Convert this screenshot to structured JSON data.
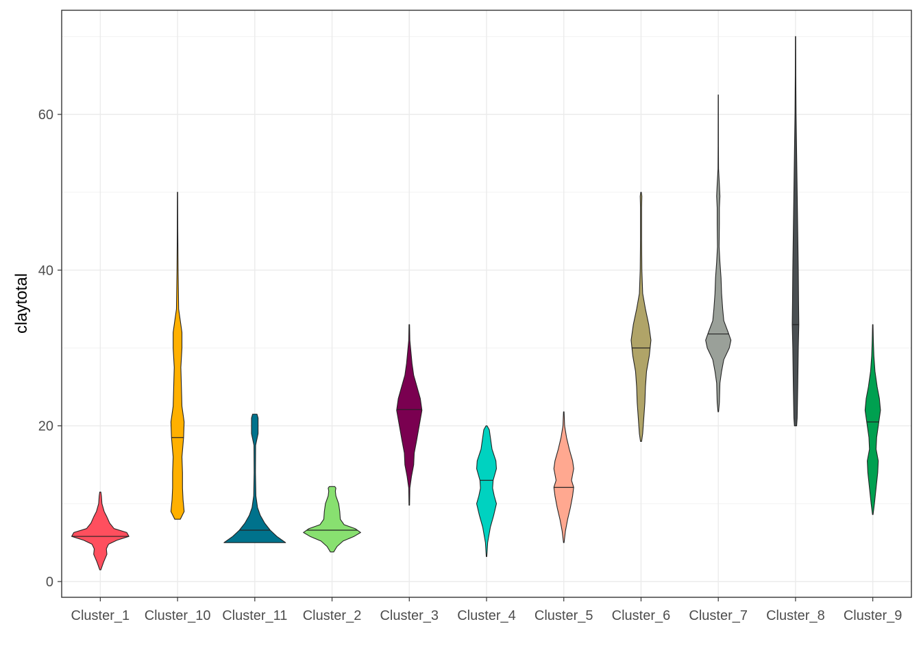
{
  "chart_data": {
    "type": "violin",
    "title": "",
    "xlabel": "",
    "ylabel": "claytotal",
    "ylim": [
      -2.5,
      73
    ],
    "yticks": [
      0,
      20,
      40,
      60
    ],
    "grid": true,
    "legend": "none",
    "categories": [
      "Cluster_1",
      "Cluster_10",
      "Cluster_11",
      "Cluster_2",
      "Cluster_3",
      "Cluster_4",
      "Cluster_5",
      "Cluster_6",
      "Cluster_7",
      "Cluster_8",
      "Cluster_9"
    ],
    "series": [
      {
        "category": "Cluster_1",
        "color": "#FF4F5E",
        "min": 1.5,
        "max": 11.5,
        "median": 5.8,
        "profile": [
          [
            1.5,
            0.01
          ],
          [
            2.5,
            0.06
          ],
          [
            3.5,
            0.12
          ],
          [
            4.2,
            0.11
          ],
          [
            4.8,
            0.15
          ],
          [
            5.3,
            0.3
          ],
          [
            5.8,
            0.52
          ],
          [
            6.3,
            0.48
          ],
          [
            6.8,
            0.25
          ],
          [
            7.5,
            0.17
          ],
          [
            8.3,
            0.12
          ],
          [
            9.0,
            0.07
          ],
          [
            10.0,
            0.03
          ],
          [
            11.0,
            0.02
          ],
          [
            11.5,
            0.01
          ]
        ]
      },
      {
        "category": "Cluster_10",
        "color": "#FFB000",
        "min": 8.0,
        "max": 50.0,
        "median": 18.5,
        "profile": [
          [
            8.0,
            0.05
          ],
          [
            9.0,
            0.12
          ],
          [
            10.5,
            0.1
          ],
          [
            12.0,
            0.09
          ],
          [
            14.0,
            0.09
          ],
          [
            16.0,
            0.08
          ],
          [
            18.5,
            0.11
          ],
          [
            20.5,
            0.12
          ],
          [
            22.5,
            0.08
          ],
          [
            25.0,
            0.07
          ],
          [
            27.5,
            0.06
          ],
          [
            30.0,
            0.08
          ],
          [
            32.0,
            0.08
          ],
          [
            33.5,
            0.05
          ],
          [
            35.0,
            0.02
          ],
          [
            40.0,
            0.01
          ],
          [
            45.0,
            0.005
          ],
          [
            50.0,
            0.003
          ]
        ]
      },
      {
        "category": "Cluster_11",
        "color": "#00728C",
        "min": 5.0,
        "max": 21.5,
        "median": 6.6,
        "profile": [
          [
            5.0,
            0.56
          ],
          [
            5.8,
            0.4
          ],
          [
            6.6,
            0.28
          ],
          [
            7.5,
            0.18
          ],
          [
            8.5,
            0.1
          ],
          [
            9.5,
            0.05
          ],
          [
            11.0,
            0.02
          ],
          [
            14.0,
            0.012
          ],
          [
            17.5,
            0.015
          ],
          [
            19.0,
            0.06
          ],
          [
            20.0,
            0.06
          ],
          [
            21.0,
            0.06
          ],
          [
            21.5,
            0.04
          ]
        ]
      },
      {
        "category": "Cluster_2",
        "color": "#88E070",
        "min": 3.8,
        "max": 12.2,
        "median": 6.6,
        "profile": [
          [
            3.8,
            0.03
          ],
          [
            4.5,
            0.09
          ],
          [
            5.2,
            0.2
          ],
          [
            5.8,
            0.4
          ],
          [
            6.3,
            0.52
          ],
          [
            6.8,
            0.42
          ],
          [
            7.3,
            0.22
          ],
          [
            8.0,
            0.15
          ],
          [
            9.0,
            0.14
          ],
          [
            10.0,
            0.12
          ],
          [
            11.0,
            0.07
          ],
          [
            11.6,
            0.06
          ],
          [
            12.0,
            0.07
          ],
          [
            12.2,
            0.05
          ]
        ]
      },
      {
        "category": "Cluster_3",
        "color": "#7A0050",
        "min": 9.8,
        "max": 33.0,
        "median": 22.1,
        "profile": [
          [
            9.8,
            0.005
          ],
          [
            12.0,
            0.01
          ],
          [
            13.5,
            0.04
          ],
          [
            15.0,
            0.08
          ],
          [
            16.5,
            0.09
          ],
          [
            18.0,
            0.13
          ],
          [
            20.0,
            0.18
          ],
          [
            22.0,
            0.23
          ],
          [
            23.5,
            0.2
          ],
          [
            25.0,
            0.14
          ],
          [
            26.5,
            0.08
          ],
          [
            28.0,
            0.05
          ],
          [
            29.5,
            0.03
          ],
          [
            31.0,
            0.01
          ],
          [
            33.0,
            0.005
          ]
        ]
      },
      {
        "category": "Cluster_4",
        "color": "#00D2C0",
        "min": 3.2,
        "max": 20.0,
        "median": 13.0,
        "profile": [
          [
            3.2,
            0.005
          ],
          [
            5.0,
            0.02
          ],
          [
            7.0,
            0.07
          ],
          [
            8.5,
            0.13
          ],
          [
            10.0,
            0.18
          ],
          [
            11.0,
            0.14
          ],
          [
            12.0,
            0.11
          ],
          [
            13.0,
            0.12
          ],
          [
            14.5,
            0.18
          ],
          [
            15.5,
            0.17
          ],
          [
            17.0,
            0.1
          ],
          [
            18.5,
            0.07
          ],
          [
            19.5,
            0.05
          ],
          [
            20.0,
            0.01
          ]
        ]
      },
      {
        "category": "Cluster_5",
        "color": "#FFA890",
        "min": 5.0,
        "max": 21.8,
        "median": 12.1,
        "profile": [
          [
            5.0,
            0.005
          ],
          [
            6.5,
            0.03
          ],
          [
            8.0,
            0.07
          ],
          [
            9.5,
            0.12
          ],
          [
            11.0,
            0.16
          ],
          [
            12.1,
            0.18
          ],
          [
            13.0,
            0.14
          ],
          [
            14.5,
            0.18
          ],
          [
            15.5,
            0.16
          ],
          [
            17.0,
            0.1
          ],
          [
            18.5,
            0.05
          ],
          [
            20.0,
            0.015
          ],
          [
            21.8,
            0.005
          ]
        ]
      },
      {
        "category": "Cluster_6",
        "color": "#B0A468",
        "min": 18.0,
        "max": 50.0,
        "median": 30.0,
        "profile": [
          [
            18.0,
            0.01
          ],
          [
            19.0,
            0.03
          ],
          [
            21.0,
            0.05
          ],
          [
            23.0,
            0.07
          ],
          [
            25.0,
            0.08
          ],
          [
            27.0,
            0.1
          ],
          [
            29.0,
            0.15
          ],
          [
            31.0,
            0.18
          ],
          [
            33.0,
            0.14
          ],
          [
            35.0,
            0.08
          ],
          [
            37.0,
            0.03
          ],
          [
            40.0,
            0.015
          ],
          [
            44.0,
            0.01
          ],
          [
            48.0,
            0.01
          ],
          [
            49.5,
            0.015
          ],
          [
            50.0,
            0.005
          ]
        ]
      },
      {
        "category": "Cluster_7",
        "color": "#9AA099",
        "min": 21.8,
        "max": 62.5,
        "median": 31.8,
        "profile": [
          [
            21.8,
            0.005
          ],
          [
            23.0,
            0.02
          ],
          [
            25.5,
            0.03
          ],
          [
            27.0,
            0.06
          ],
          [
            28.5,
            0.1
          ],
          [
            30.0,
            0.2
          ],
          [
            31.0,
            0.23
          ],
          [
            32.0,
            0.18
          ],
          [
            33.5,
            0.1
          ],
          [
            35.0,
            0.08
          ],
          [
            37.0,
            0.06
          ],
          [
            39.0,
            0.05
          ],
          [
            41.0,
            0.03
          ],
          [
            43.0,
            0.015
          ],
          [
            46.0,
            0.02
          ],
          [
            48.0,
            0.02
          ],
          [
            49.5,
            0.03
          ],
          [
            51.0,
            0.02
          ],
          [
            53.0,
            0.005
          ],
          [
            56.0,
            0.003
          ],
          [
            62.5,
            0.002
          ]
        ]
      },
      {
        "category": "Cluster_8",
        "color": "#4A4F52",
        "min": 20.0,
        "max": 70.0,
        "median": 33.0,
        "profile": [
          [
            20.0,
            0.02
          ],
          [
            21.0,
            0.03
          ],
          [
            25.0,
            0.04
          ],
          [
            30.0,
            0.05
          ],
          [
            33.0,
            0.06
          ],
          [
            36.0,
            0.055
          ],
          [
            40.0,
            0.05
          ],
          [
            45.0,
            0.04
          ],
          [
            50.0,
            0.03
          ],
          [
            55.0,
            0.02
          ],
          [
            60.0,
            0.01
          ],
          [
            65.0,
            0.005
          ],
          [
            70.0,
            0.003
          ]
        ]
      },
      {
        "category": "Cluster_9",
        "color": "#00A050",
        "min": 8.6,
        "max": 33.0,
        "median": 20.5,
        "profile": [
          [
            8.6,
            0.005
          ],
          [
            10.0,
            0.03
          ],
          [
            12.0,
            0.06
          ],
          [
            14.0,
            0.09
          ],
          [
            15.5,
            0.1
          ],
          [
            17.0,
            0.06
          ],
          [
            18.5,
            0.07
          ],
          [
            20.5,
            0.11
          ],
          [
            22.0,
            0.14
          ],
          [
            23.5,
            0.12
          ],
          [
            25.0,
            0.08
          ],
          [
            27.0,
            0.04
          ],
          [
            29.0,
            0.02
          ],
          [
            31.0,
            0.01
          ],
          [
            33.0,
            0.004
          ]
        ]
      }
    ]
  }
}
